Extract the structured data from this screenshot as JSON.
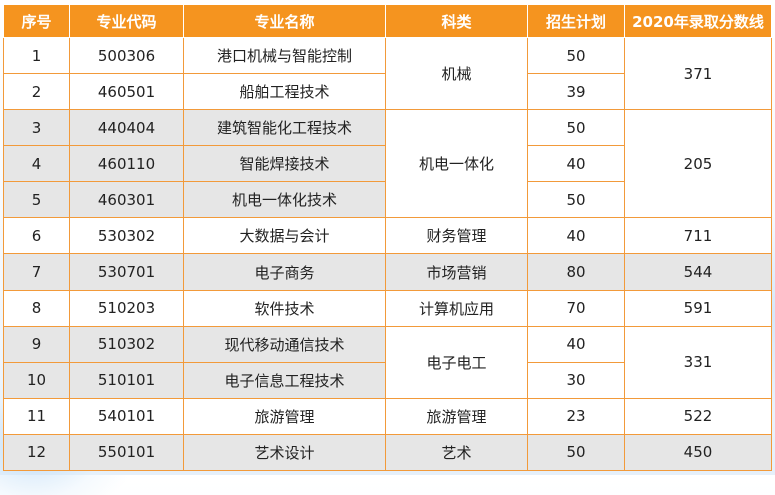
{
  "headers": [
    "序号",
    "专业代码",
    "专业名称",
    "科类",
    "招生计划",
    "2020年录取分数线"
  ],
  "colors": {
    "header_bg": "#f5941f",
    "header_text": "#ffffff",
    "border": "#f29a3a",
    "row_white": "#ffffff",
    "row_grey": "#e6e6e6"
  },
  "groups": [
    {
      "category": "机械",
      "score": "371",
      "shade": "white",
      "rows": [
        {
          "no": "1",
          "code": "500306",
          "name": "港口机械与智能控制",
          "plan": "50"
        },
        {
          "no": "2",
          "code": "460501",
          "name": "船舶工程技术",
          "plan": "39"
        }
      ]
    },
    {
      "category": "机电一体化",
      "score": "205",
      "shade": "grey",
      "rows": [
        {
          "no": "3",
          "code": "440404",
          "name": "建筑智能化工程技术",
          "plan": "50"
        },
        {
          "no": "4",
          "code": "460110",
          "name": "智能焊接技术",
          "plan": "40"
        },
        {
          "no": "5",
          "code": "460301",
          "name": "机电一体化技术",
          "plan": "50"
        }
      ]
    },
    {
      "category": "财务管理",
      "score": "711",
      "shade": "white",
      "rows": [
        {
          "no": "6",
          "code": "530302",
          "name": "大数据与会计",
          "plan": "40"
        }
      ]
    },
    {
      "category": "市场营销",
      "score": "544",
      "shade": "grey",
      "rows": [
        {
          "no": "7",
          "code": "530701",
          "name": "电子商务",
          "plan": "80"
        }
      ]
    },
    {
      "category": "计算机应用",
      "score": "591",
      "shade": "white",
      "rows": [
        {
          "no": "8",
          "code": "510203",
          "name": "软件技术",
          "plan": "70"
        }
      ]
    },
    {
      "category": "电子电工",
      "score": "331",
      "shade": "grey",
      "rows": [
        {
          "no": "9",
          "code": "510302",
          "name": "现代移动通信技术",
          "plan": "40"
        },
        {
          "no": "10",
          "code": "510101",
          "name": "电子信息工程技术",
          "plan": "30"
        }
      ]
    },
    {
      "category": "旅游管理",
      "score": "522",
      "shade": "white",
      "rows": [
        {
          "no": "11",
          "code": "540101",
          "name": "旅游管理",
          "plan": "23"
        }
      ]
    },
    {
      "category": "艺术",
      "score": "450",
      "shade": "grey",
      "rows": [
        {
          "no": "12",
          "code": "550101",
          "name": "艺术设计",
          "plan": "50"
        }
      ]
    }
  ]
}
